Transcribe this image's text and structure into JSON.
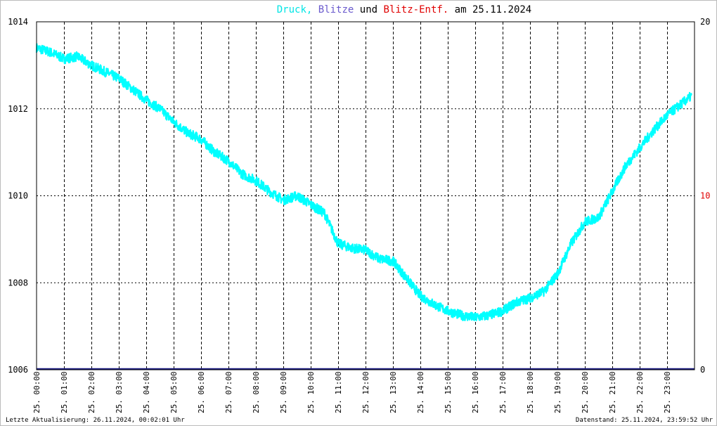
{
  "title": {
    "parts": [
      {
        "text": "Druck",
        "color": "#00e5e5"
      },
      {
        "text": ",",
        "color": "#00e5e5"
      },
      {
        "text": " Blitze",
        "color": "#6a5acd"
      },
      {
        "text": " und ",
        "color": "#000000"
      },
      {
        "text": "Blitz-Entf.",
        "color": "#e00000"
      },
      {
        "text": " am 25.11.2024",
        "color": "#000000"
      }
    ]
  },
  "footer": {
    "left": "Letzte Aktualisierung: 26.11.2024, 00:02:01 Uhr",
    "right": "Datenstand: 25.11.2024, 23:59:52 Uhr"
  },
  "colors": {
    "pressure": "#00ffff",
    "lightning": "#1a1a80",
    "right_axis_label": "#e00000",
    "grid": "#000000"
  },
  "chart_data": {
    "type": "line",
    "x_axis": {
      "ticks": [
        "25. 00:00",
        "25. 01:00",
        "25. 02:00",
        "25. 03:00",
        "25. 04:00",
        "25. 05:00",
        "25. 06:00",
        "25. 07:00",
        "25. 08:00",
        "25. 09:00",
        "25. 10:00",
        "25. 11:00",
        "25. 12:00",
        "25. 13:00",
        "25. 14:00",
        "25. 15:00",
        "25. 16:00",
        "25. 17:00",
        "25. 18:00",
        "25. 19:00",
        "25. 20:00",
        "25. 21:00",
        "25. 22:00",
        "25. 23:00"
      ],
      "range_hours": [
        0,
        24
      ]
    },
    "y_left": {
      "range": [
        1006,
        1014
      ],
      "ticks": [
        "1006",
        "1008",
        "1010",
        "1012",
        "1014"
      ]
    },
    "y_right": {
      "range": [
        0,
        20
      ],
      "ticks": [
        "0",
        "10",
        "20"
      ]
    },
    "grid": true,
    "series": [
      {
        "name": "Druck",
        "axis": "left",
        "x_hours": [
          0,
          0.5,
          1,
          1.5,
          2,
          2.5,
          3,
          3.5,
          4,
          4.5,
          5,
          5.5,
          6,
          6.5,
          7,
          7.5,
          8,
          8.5,
          9,
          9.5,
          10,
          10.5,
          11,
          11.5,
          12,
          12.5,
          13,
          13.5,
          14,
          14.5,
          15,
          15.5,
          16,
          16.5,
          17,
          17.5,
          18,
          18.5,
          19,
          19.5,
          20,
          20.5,
          21,
          21.5,
          22,
          22.5,
          23,
          23.5,
          23.9
        ],
        "values": [
          1013.4,
          1013.3,
          1013.15,
          1013.2,
          1013.0,
          1012.85,
          1012.7,
          1012.45,
          1012.2,
          1012.0,
          1011.7,
          1011.45,
          1011.3,
          1011.0,
          1010.8,
          1010.5,
          1010.35,
          1010.1,
          1009.9,
          1010.0,
          1009.8,
          1009.6,
          1008.9,
          1008.8,
          1008.75,
          1008.55,
          1008.5,
          1008.1,
          1007.7,
          1007.5,
          1007.35,
          1007.25,
          1007.2,
          1007.25,
          1007.35,
          1007.55,
          1007.65,
          1007.8,
          1008.2,
          1008.9,
          1009.4,
          1009.5,
          1010.1,
          1010.7,
          1011.1,
          1011.5,
          1011.85,
          1012.1,
          1012.3
        ]
      },
      {
        "name": "Blitze",
        "axis": "right",
        "x_hours": [
          0,
          24
        ],
        "values": [
          0,
          0
        ]
      }
    ]
  }
}
